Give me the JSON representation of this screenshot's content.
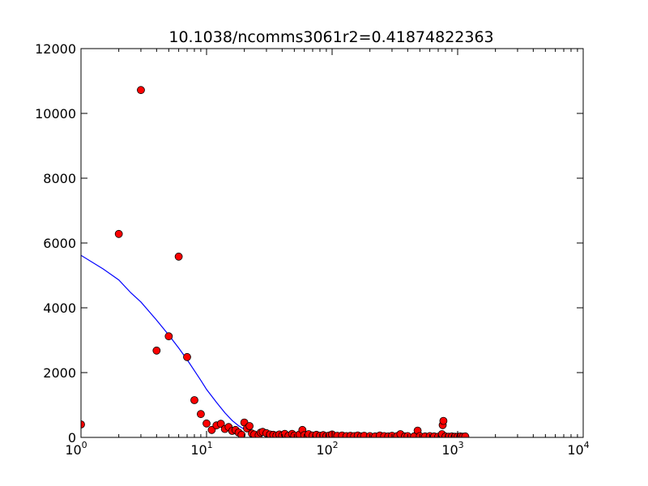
{
  "chart_data": {
    "type": "scatter",
    "title": "10.1038/ncomms3061r2=0.41874822363",
    "xlabel": "",
    "ylabel": "",
    "xscale": "log",
    "xlim": [
      1,
      10000
    ],
    "ylim": [
      0,
      12000
    ],
    "grid": false,
    "x_tick_labels": [
      {
        "value": 1,
        "base": "10",
        "exp": "0"
      },
      {
        "value": 10,
        "base": "10",
        "exp": "1"
      },
      {
        "value": 100,
        "base": "10",
        "exp": "2"
      },
      {
        "value": 1000,
        "base": "10",
        "exp": "3"
      },
      {
        "value": 10000,
        "base": "10",
        "exp": "4"
      }
    ],
    "y_tick_labels": [
      {
        "value": 0,
        "label": "0"
      },
      {
        "value": 2000,
        "label": "2000"
      },
      {
        "value": 4000,
        "label": "4000"
      },
      {
        "value": 6000,
        "label": "6000"
      },
      {
        "value": 8000,
        "label": "8000"
      },
      {
        "value": 10000,
        "label": "10000"
      },
      {
        "value": 12000,
        "label": "12000"
      }
    ],
    "scatter_color": "#ff0000",
    "line_color": "#0000ff",
    "series": [
      {
        "kind": "scatter",
        "points": [
          [
            1,
            400
          ],
          [
            2,
            6280
          ],
          [
            3,
            10720
          ],
          [
            4,
            2680
          ],
          [
            5,
            3120
          ],
          [
            6,
            5580
          ],
          [
            7,
            2480
          ],
          [
            8,
            1150
          ],
          [
            9,
            720
          ],
          [
            10,
            430
          ],
          [
            11,
            230
          ],
          [
            12,
            370
          ],
          [
            13,
            420
          ],
          [
            14,
            260
          ],
          [
            15,
            320
          ],
          [
            16,
            200
          ],
          [
            17,
            230
          ],
          [
            18,
            150
          ],
          [
            19,
            80
          ],
          [
            20,
            460
          ],
          [
            21,
            280
          ],
          [
            22,
            350
          ],
          [
            23,
            120
          ],
          [
            24,
            90
          ],
          [
            26,
            70
          ],
          [
            27,
            150
          ],
          [
            28,
            170
          ],
          [
            30,
            130
          ],
          [
            32,
            90
          ],
          [
            34,
            80
          ],
          [
            36,
            60
          ],
          [
            38,
            90
          ],
          [
            40,
            60
          ],
          [
            42,
            110
          ],
          [
            45,
            50
          ],
          [
            48,
            110
          ],
          [
            50,
            60
          ],
          [
            55,
            90
          ],
          [
            58,
            230
          ],
          [
            60,
            70
          ],
          [
            65,
            100
          ],
          [
            70,
            60
          ],
          [
            75,
            80
          ],
          [
            80,
            50
          ],
          [
            85,
            70
          ],
          [
            90,
            40
          ],
          [
            95,
            60
          ],
          [
            100,
            90
          ],
          [
            110,
            50
          ],
          [
            120,
            60
          ],
          [
            130,
            40
          ],
          [
            140,
            50
          ],
          [
            150,
            40
          ],
          [
            160,
            60
          ],
          [
            170,
            30
          ],
          [
            180,
            50
          ],
          [
            200,
            40
          ],
          [
            220,
            30
          ],
          [
            240,
            60
          ],
          [
            260,
            40
          ],
          [
            280,
            30
          ],
          [
            300,
            50
          ],
          [
            330,
            40
          ],
          [
            350,
            100
          ],
          [
            380,
            30
          ],
          [
            400,
            40
          ],
          [
            450,
            30
          ],
          [
            480,
            210
          ],
          [
            500,
            40
          ],
          [
            550,
            30
          ],
          [
            600,
            40
          ],
          [
            650,
            30
          ],
          [
            700,
            20
          ],
          [
            750,
            100
          ],
          [
            760,
            380
          ],
          [
            770,
            510
          ],
          [
            800,
            30
          ],
          [
            850,
            20
          ],
          [
            900,
            30
          ],
          [
            950,
            20
          ],
          [
            1000,
            20
          ],
          [
            1050,
            30
          ],
          [
            1100,
            20
          ],
          [
            1150,
            30
          ]
        ]
      },
      {
        "kind": "line",
        "points": [
          [
            1,
            5620
          ],
          [
            1.5,
            5200
          ],
          [
            2,
            4860
          ],
          [
            2.5,
            4460
          ],
          [
            3,
            4180
          ],
          [
            4,
            3620
          ],
          [
            5,
            3160
          ],
          [
            6,
            2760
          ],
          [
            7,
            2400
          ],
          [
            8,
            2060
          ],
          [
            9,
            1760
          ],
          [
            10,
            1480
          ],
          [
            12,
            1080
          ],
          [
            14,
            760
          ],
          [
            16,
            520
          ],
          [
            18,
            360
          ],
          [
            20,
            250
          ],
          [
            25,
            120
          ],
          [
            30,
            70
          ],
          [
            40,
            40
          ],
          [
            60,
            25
          ],
          [
            100,
            20
          ],
          [
            200,
            15
          ],
          [
            500,
            12
          ],
          [
            1000,
            10
          ],
          [
            1150,
            10
          ]
        ]
      }
    ]
  }
}
